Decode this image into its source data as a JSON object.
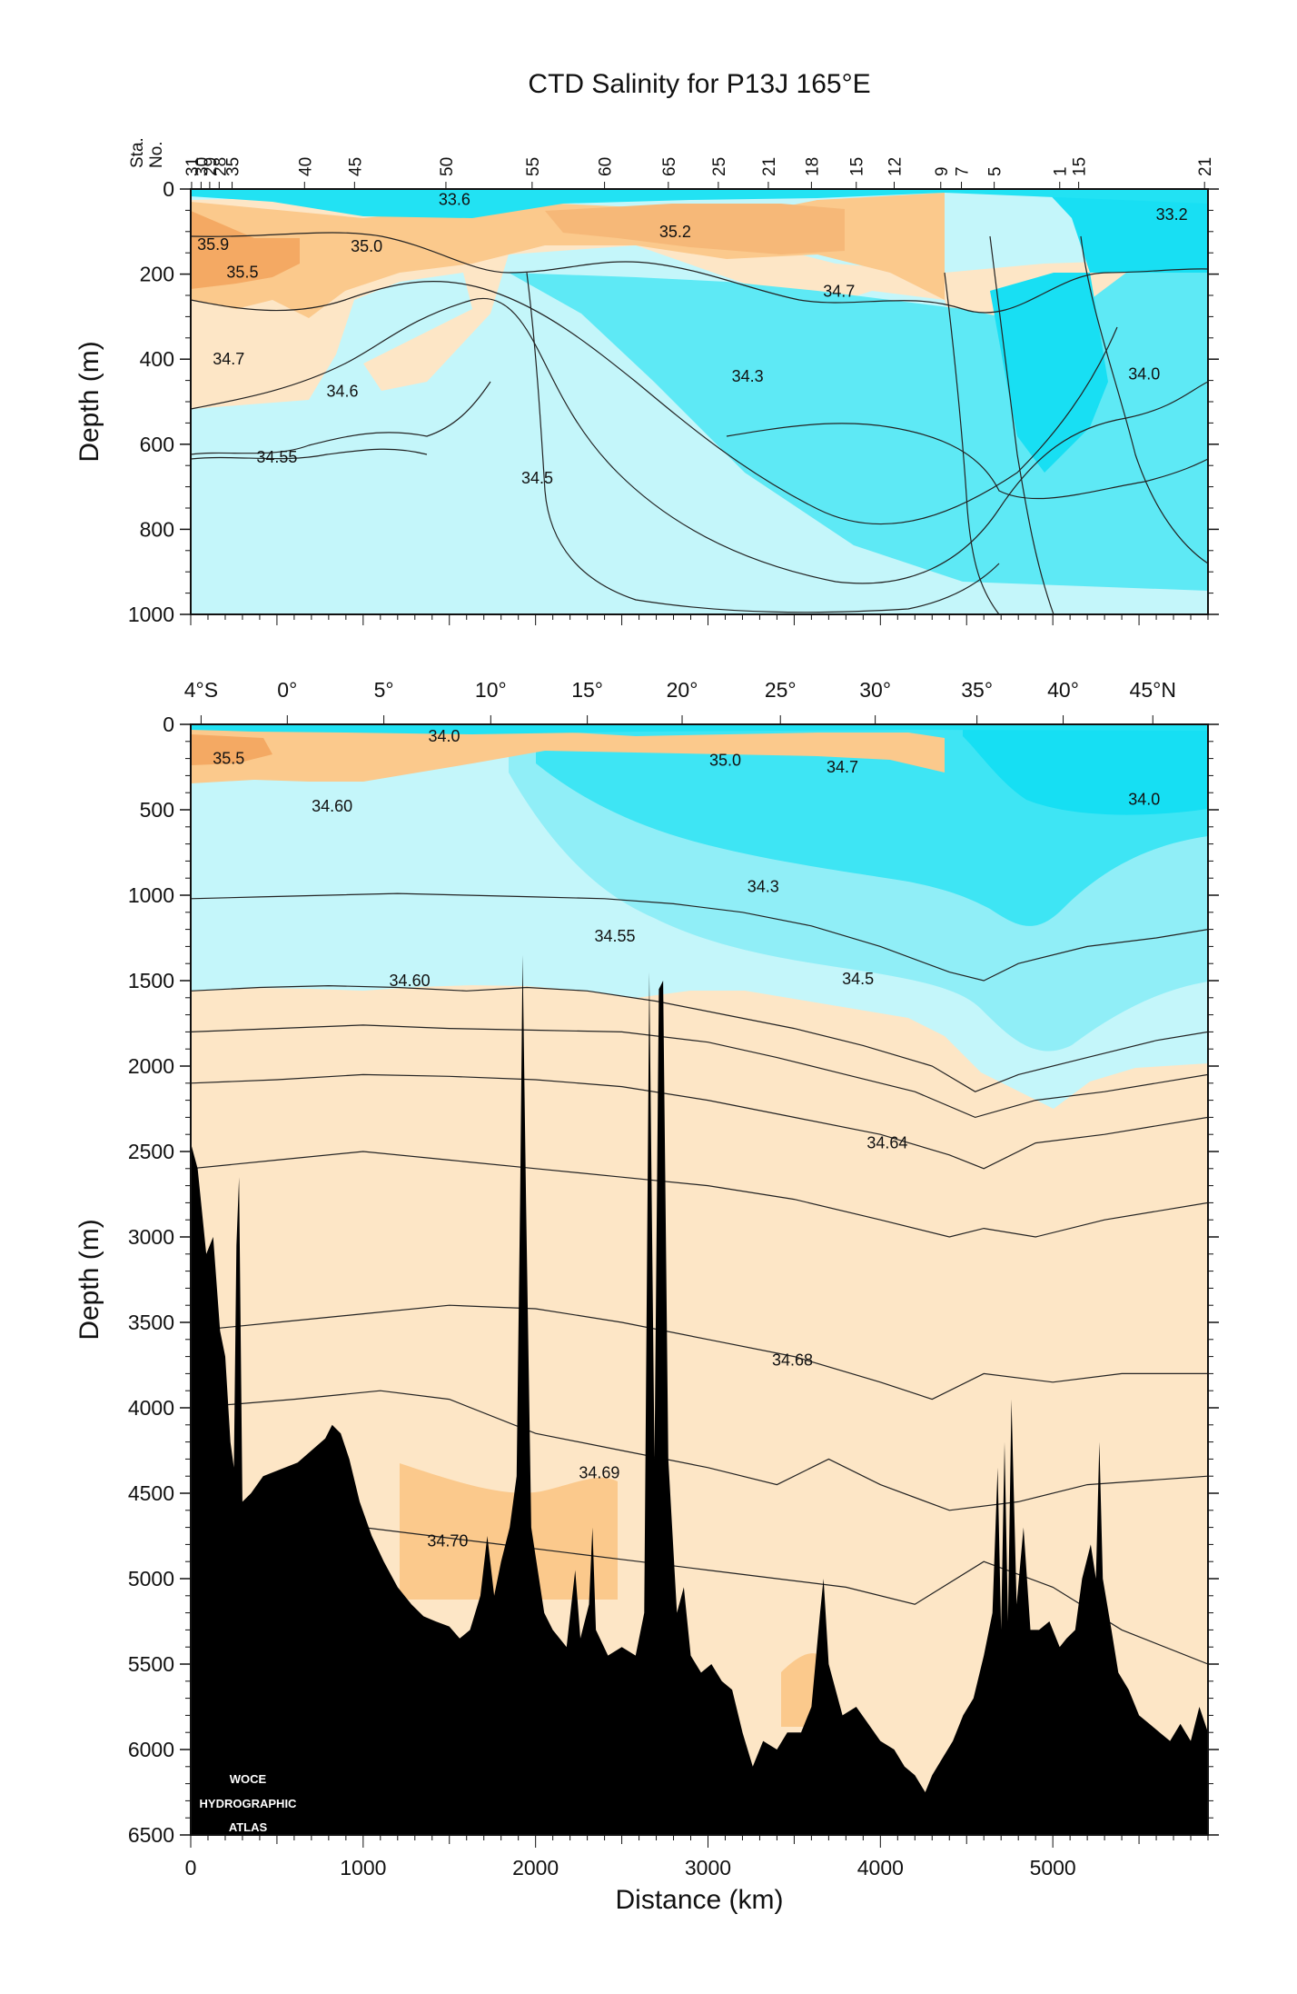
{
  "chart_data": [
    {
      "type": "contour",
      "title": "CTD Salinity for P13J 165°E",
      "ylabel": "Depth (m)",
      "ylim": [
        1000,
        0
      ],
      "xlim": [
        0,
        5900
      ],
      "yticks": [
        0,
        200,
        400,
        600,
        800,
        1000
      ],
      "station_header": [
        "Sta.",
        "No."
      ],
      "stations": [
        {
          "label": "31",
          "km": 5
        },
        {
          "label": "30",
          "km": 60
        },
        {
          "label": "29",
          "km": 110
        },
        {
          "label": "28",
          "km": 165
        },
        {
          "label": "35",
          "km": 240
        },
        {
          "label": "40",
          "km": 660
        },
        {
          "label": "45",
          "km": 950
        },
        {
          "label": "50",
          "km": 1480
        },
        {
          "label": "55",
          "km": 1980
        },
        {
          "label": "60",
          "km": 2400
        },
        {
          "label": "65",
          "km": 2770
        },
        {
          "label": "25",
          "km": 3060
        },
        {
          "label": "21",
          "km": 3350
        },
        {
          "label": "18",
          "km": 3600
        },
        {
          "label": "15",
          "km": 3860
        },
        {
          "label": "12",
          "km": 4080
        },
        {
          "label": "9",
          "km": 4350
        },
        {
          "label": "7",
          "km": 4470
        },
        {
          "label": "5",
          "km": 4660
        },
        {
          "label": "1",
          "km": 5040
        },
        {
          "label": "15",
          "km": 5150
        },
        {
          "label": "21",
          "km": 5880
        }
      ],
      "contour_labels": [
        {
          "text": "33.6",
          "km": 1530,
          "depth": 25
        },
        {
          "text": "35.9",
          "km": 130,
          "depth": 130
        },
        {
          "text": "35.5",
          "km": 300,
          "depth": 195
        },
        {
          "text": "35.0",
          "km": 1020,
          "depth": 135
        },
        {
          "text": "35.2",
          "km": 2810,
          "depth": 100
        },
        {
          "text": "33.2",
          "km": 5690,
          "depth": 60
        },
        {
          "text": "34.7",
          "km": 3760,
          "depth": 240
        },
        {
          "text": "34.7",
          "km": 220,
          "depth": 400
        },
        {
          "text": "34.6",
          "km": 880,
          "depth": 475
        },
        {
          "text": "34.3",
          "km": 3230,
          "depth": 440
        },
        {
          "text": "34.0",
          "km": 5530,
          "depth": 435
        },
        {
          "text": "34.55",
          "km": 500,
          "depth": 630
        },
        {
          "text": "34.5",
          "km": 2010,
          "depth": 680
        }
      ]
    },
    {
      "type": "contour",
      "ylabel": "Depth (m)",
      "xlabel": "Distance (km)",
      "ylim": [
        6500,
        0
      ],
      "xlim": [
        0,
        5900
      ],
      "yticks": [
        0,
        500,
        1000,
        1500,
        2000,
        2500,
        3000,
        3500,
        4000,
        4500,
        5000,
        5500,
        6000,
        6500
      ],
      "xticks": [
        0,
        1000,
        2000,
        3000,
        4000,
        5000
      ],
      "latitude_ticks": [
        {
          "label": "4°S",
          "km": 60
        },
        {
          "label": "0°",
          "km": 560
        },
        {
          "label": "5°",
          "km": 1120
        },
        {
          "label": "10°",
          "km": 1740
        },
        {
          "label": "15°",
          "km": 2300
        },
        {
          "label": "20°",
          "km": 2850
        },
        {
          "label": "25°",
          "km": 3420
        },
        {
          "label": "30°",
          "km": 3970
        },
        {
          "label": "35°",
          "km": 4560
        },
        {
          "label": "40°",
          "km": 5060
        },
        {
          "label": "45°N",
          "km": 5580
        }
      ],
      "contour_labels": [
        {
          "text": "34.0",
          "km": 1470,
          "depth": 70
        },
        {
          "text": "35.5",
          "km": 220,
          "depth": 200
        },
        {
          "text": "35.0",
          "km": 3100,
          "depth": 210
        },
        {
          "text": "34.7",
          "km": 3780,
          "depth": 250
        },
        {
          "text": "34.60",
          "km": 820,
          "depth": 480
        },
        {
          "text": "34.0",
          "km": 5530,
          "depth": 440
        },
        {
          "text": "34.3",
          "km": 3320,
          "depth": 950
        },
        {
          "text": "34.55",
          "km": 2460,
          "depth": 1240
        },
        {
          "text": "34.60",
          "km": 1270,
          "depth": 1500
        },
        {
          "text": "34.5",
          "km": 3870,
          "depth": 1490
        },
        {
          "text": "34.64",
          "km": 4040,
          "depth": 2450
        },
        {
          "text": "34.68",
          "km": 3490,
          "depth": 3720
        },
        {
          "text": "34.69",
          "km": 2370,
          "depth": 4380
        },
        {
          "text": "34.70",
          "km": 1490,
          "depth": 4780
        }
      ],
      "bottom_profile": [
        [
          0,
          2450
        ],
        [
          40,
          2600
        ],
        [
          90,
          3100
        ],
        [
          130,
          3000
        ],
        [
          170,
          3550
        ],
        [
          200,
          3700
        ],
        [
          230,
          4200
        ],
        [
          250,
          4350
        ],
        [
          265,
          3050
        ],
        [
          280,
          2650
        ],
        [
          300,
          4550
        ],
        [
          350,
          4500
        ],
        [
          420,
          4400
        ],
        [
          520,
          4360
        ],
        [
          620,
          4320
        ],
        [
          700,
          4250
        ],
        [
          780,
          4180
        ],
        [
          820,
          4100
        ],
        [
          870,
          4150
        ],
        [
          920,
          4300
        ],
        [
          980,
          4550
        ],
        [
          1050,
          4750
        ],
        [
          1120,
          4900
        ],
        [
          1200,
          5050
        ],
        [
          1280,
          5150
        ],
        [
          1350,
          5220
        ],
        [
          1420,
          5250
        ],
        [
          1500,
          5280
        ],
        [
          1560,
          5350
        ],
        [
          1620,
          5300
        ],
        [
          1680,
          5100
        ],
        [
          1720,
          4750
        ],
        [
          1760,
          5100
        ],
        [
          1800,
          4900
        ],
        [
          1850,
          4700
        ],
        [
          1890,
          4400
        ],
        [
          1910,
          2800
        ],
        [
          1925,
          1350
        ],
        [
          1945,
          2800
        ],
        [
          1975,
          4700
        ],
        [
          2050,
          5200
        ],
        [
          2100,
          5300
        ],
        [
          2180,
          5400
        ],
        [
          2230,
          4950
        ],
        [
          2260,
          5350
        ],
        [
          2310,
          5150
        ],
        [
          2330,
          4700
        ],
        [
          2350,
          5300
        ],
        [
          2420,
          5450
        ],
        [
          2500,
          5400
        ],
        [
          2580,
          5450
        ],
        [
          2630,
          5200
        ],
        [
          2660,
          1450
        ],
        [
          2690,
          4300
        ],
        [
          2715,
          1550
        ],
        [
          2740,
          1500
        ],
        [
          2770,
          4300
        ],
        [
          2820,
          5200
        ],
        [
          2860,
          5050
        ],
        [
          2900,
          5450
        ],
        [
          2960,
          5550
        ],
        [
          3020,
          5500
        ],
        [
          3080,
          5600
        ],
        [
          3140,
          5650
        ],
        [
          3200,
          5900
        ],
        [
          3260,
          6100
        ],
        [
          3320,
          5950
        ],
        [
          3400,
          6000
        ],
        [
          3460,
          5900
        ],
        [
          3540,
          5900
        ],
        [
          3600,
          5750
        ],
        [
          3650,
          5200
        ],
        [
          3670,
          5000
        ],
        [
          3700,
          5500
        ],
        [
          3780,
          5800
        ],
        [
          3860,
          5750
        ],
        [
          3930,
          5850
        ],
        [
          4000,
          5950
        ],
        [
          4080,
          6000
        ],
        [
          4140,
          6100
        ],
        [
          4200,
          6150
        ],
        [
          4260,
          6250
        ],
        [
          4300,
          6150
        ],
        [
          4360,
          6050
        ],
        [
          4420,
          5950
        ],
        [
          4480,
          5800
        ],
        [
          4540,
          5700
        ],
        [
          4600,
          5450
        ],
        [
          4650,
          5200
        ],
        [
          4680,
          4350
        ],
        [
          4700,
          5300
        ],
        [
          4720,
          4200
        ],
        [
          4740,
          5250
        ],
        [
          4760,
          3950
        ],
        [
          4790,
          5150
        ],
        [
          4830,
          4700
        ],
        [
          4870,
          5300
        ],
        [
          4920,
          5300
        ],
        [
          4980,
          5250
        ],
        [
          5040,
          5400
        ],
        [
          5080,
          5350
        ],
        [
          5130,
          5300
        ],
        [
          5170,
          5000
        ],
        [
          5220,
          4800
        ],
        [
          5250,
          5000
        ],
        [
          5270,
          4200
        ],
        [
          5290,
          5000
        ],
        [
          5340,
          5300
        ],
        [
          5380,
          5550
        ],
        [
          5440,
          5650
        ],
        [
          5500,
          5800
        ],
        [
          5560,
          5850
        ],
        [
          5620,
          5900
        ],
        [
          5680,
          5950
        ],
        [
          5740,
          5850
        ],
        [
          5800,
          5950
        ],
        [
          5850,
          5750
        ],
        [
          5900,
          5900
        ]
      ],
      "logo_text": [
        "WOCE",
        "HYDROGRAPHIC",
        "ATLAS"
      ]
    }
  ]
}
